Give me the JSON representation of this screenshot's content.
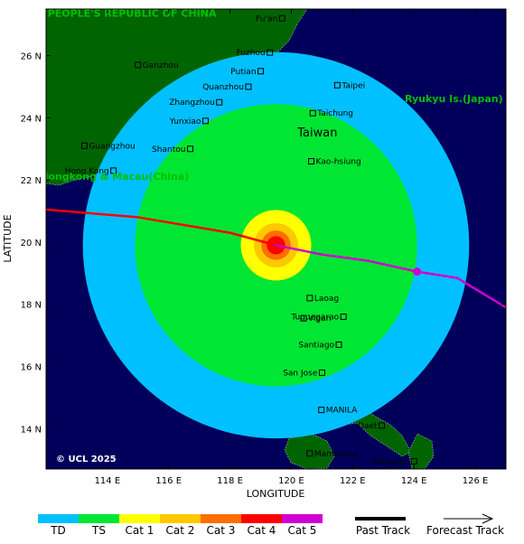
{
  "map": {
    "lon_range": [
      112,
      127
    ],
    "lat_range": [
      12.7,
      27.5
    ],
    "lon_ticks": [
      114,
      116,
      118,
      120,
      122,
      124,
      126
    ],
    "lat_ticks": [
      14,
      16,
      18,
      20,
      22,
      24,
      26
    ],
    "lon_tick_labels": [
      "114 E",
      "116 E",
      "118 E",
      "120 E",
      "122 E",
      "124 E",
      "126 E"
    ],
    "lat_tick_labels": [
      "14 N",
      "16 N",
      "18 N",
      "20 N",
      "22 N",
      "24 N",
      "26 N"
    ],
    "xlabel": "LONGITUDE",
    "ylabel": "LATITUDE",
    "copyright": "© UCL 2025"
  },
  "regions": [
    {
      "name": "PEOPLE'S REPUBLIC OF CHINA",
      "lon": 112.05,
      "lat": 27.25
    },
    {
      "name": "Ryukyu Is.(Japan)",
      "lon": 123.7,
      "lat": 24.5
    },
    {
      "name": "Hongkong & Macau(China)",
      "lon": 111.8,
      "lat": 22.0
    }
  ],
  "islands": [
    {
      "name": "Taiwan",
      "lon": 120.2,
      "lat": 23.4
    }
  ],
  "cities": [
    {
      "name": "Fu'an",
      "lon": 119.7,
      "lat": 27.2,
      "side": "left"
    },
    {
      "name": "Fuzhou",
      "lon": 119.3,
      "lat": 26.1,
      "side": "left"
    },
    {
      "name": "Putian",
      "lon": 119.0,
      "lat": 25.5,
      "side": "left"
    },
    {
      "name": "Ganzhou",
      "lon": 115.0,
      "lat": 25.7,
      "side": "right"
    },
    {
      "name": "Quanzhou",
      "lon": 118.6,
      "lat": 25.0,
      "side": "left"
    },
    {
      "name": "Taipei",
      "lon": 121.5,
      "lat": 25.05,
      "side": "right"
    },
    {
      "name": "Zhangzhou",
      "lon": 117.65,
      "lat": 24.5,
      "side": "left"
    },
    {
      "name": "Taichung",
      "lon": 120.7,
      "lat": 24.15,
      "side": "right"
    },
    {
      "name": "Yunxiao",
      "lon": 117.2,
      "lat": 23.9,
      "side": "left"
    },
    {
      "name": "Guangzhou",
      "lon": 113.25,
      "lat": 23.1,
      "side": "right"
    },
    {
      "name": "Shantou",
      "lon": 116.7,
      "lat": 23.0,
      "side": "left"
    },
    {
      "name": "Kao-hsiung",
      "lon": 120.65,
      "lat": 22.6,
      "side": "right"
    },
    {
      "name": "Hong Kong",
      "lon": 114.2,
      "lat": 22.3,
      "side": "left"
    },
    {
      "name": "Laoag",
      "lon": 120.6,
      "lat": 18.2,
      "side": "right"
    },
    {
      "name": "Tuguegarao",
      "lon": 121.7,
      "lat": 17.6,
      "side": "left"
    },
    {
      "name": "Vigan",
      "lon": 120.4,
      "lat": 17.55,
      "side": "right"
    },
    {
      "name": "Santiago",
      "lon": 121.55,
      "lat": 16.7,
      "side": "left"
    },
    {
      "name": "San Jose",
      "lon": 121.0,
      "lat": 15.8,
      "side": "left"
    },
    {
      "name": "MANILA",
      "lon": 120.98,
      "lat": 14.6,
      "side": "right"
    },
    {
      "name": "Daet",
      "lon": 122.95,
      "lat": 14.1,
      "side": "left"
    },
    {
      "name": "Mamburao",
      "lon": 120.6,
      "lat": 13.2,
      "side": "right"
    },
    {
      "name": "Sorsogon",
      "lon": 124.0,
      "lat": 12.95,
      "side": "left"
    }
  ],
  "storm": {
    "center_lon": 119.5,
    "center_lat": 19.9,
    "wind_radii_deg": [
      {
        "category": "TD",
        "radius": 6.3
      },
      {
        "category": "TS",
        "radius": 4.6
      },
      {
        "category": "Cat 1",
        "radius": 1.15
      },
      {
        "category": "Cat 2",
        "radius": 0.72
      },
      {
        "category": "Cat 3",
        "radius": 0.48
      },
      {
        "category": "Cat 4",
        "radius": 0.3
      }
    ],
    "track": [
      {
        "lon": 112.0,
        "lat": 21.05,
        "cat": "Cat 4"
      },
      {
        "lon": 115.0,
        "lat": 20.8,
        "cat": "Cat 4"
      },
      {
        "lon": 118.0,
        "lat": 20.3,
        "cat": "Cat 4"
      },
      {
        "lon": 119.5,
        "lat": 19.9,
        "cat": "Cat 4"
      },
      {
        "lon": 121.0,
        "lat": 19.6,
        "cat": "Cat 5"
      },
      {
        "lon": 122.5,
        "lat": 19.4,
        "cat": "Cat 5"
      },
      {
        "lon": 124.1,
        "lat": 19.05,
        "cat": "Cat 5"
      },
      {
        "lon": 125.4,
        "lat": 18.85,
        "cat": "Cat 5"
      },
      {
        "lon": 127.0,
        "lat": 17.9,
        "cat": "Cat 5"
      }
    ],
    "marker": {
      "lon": 124.1,
      "lat": 19.05,
      "cat": "Cat 5"
    }
  },
  "colors": {
    "ocean": "#00005a",
    "land": "#006400",
    "TD": "#00c0ff",
    "TS": "#00e632",
    "Cat 1": "#ffff00",
    "Cat 2": "#ffc800",
    "Cat 3": "#ff6e00",
    "Cat 4": "#ff0000",
    "Cat 5": "#d000d0"
  },
  "legend": {
    "categories": [
      "TD",
      "TS",
      "Cat 1",
      "Cat 2",
      "Cat 3",
      "Cat 4",
      "Cat 5"
    ],
    "past_track": "Past Track",
    "forecast_track": "Forecast Track"
  }
}
